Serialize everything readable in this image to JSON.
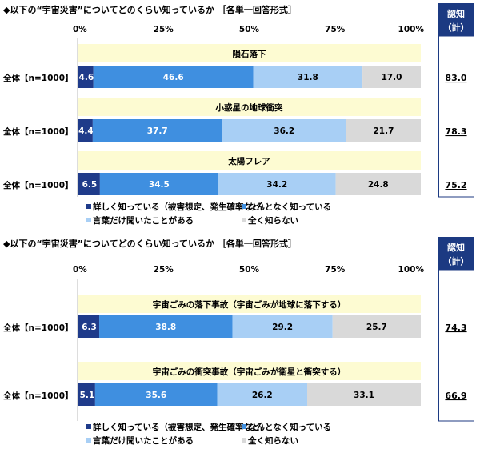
{
  "chart_data": [
    {
      "type": "bar",
      "stacked": true,
      "orientation": "horizontal",
      "title": "◆以下の“宇宙災害”についてどのくらい知っているか ［各単一回答形式］",
      "xlim": [
        0,
        100
      ],
      "x_ticks": [
        "0%",
        "25%",
        "50%",
        "75%",
        "100%"
      ],
      "total_header": "認知（計）",
      "groups": [
        {
          "item": "隕石落下",
          "category": "全体【n=1000】",
          "values": [
            4.6,
            46.6,
            31.8,
            17.0
          ],
          "total": "83.0"
        },
        {
          "item": "小惑星の地球衝突",
          "category": "全体【n=1000】",
          "values": [
            4.4,
            37.7,
            36.2,
            21.7
          ],
          "total": "78.3"
        },
        {
          "item": "太陽フレア",
          "category": "全体【n=1000】",
          "values": [
            6.5,
            34.5,
            34.2,
            24.8
          ],
          "total": "75.2"
        }
      ],
      "series": [
        {
          "name": "詳しく知っている（被害想定、発生確率など）",
          "color": "#1f3b8a"
        },
        {
          "name": "なんとなく知っている",
          "color": "#3f8fe0"
        },
        {
          "name": "言葉だけ聞いたことがある",
          "color": "#a8cff5"
        },
        {
          "name": "全く知らない",
          "color": "#d9d9d9"
        }
      ],
      "legend": "bottom"
    },
    {
      "type": "bar",
      "stacked": true,
      "orientation": "horizontal",
      "title": "◆以下の“宇宙災害”についてどのくらい知っているか ［各単一回答形式］",
      "xlim": [
        0,
        100
      ],
      "x_ticks": [
        "0%",
        "25%",
        "50%",
        "75%",
        "100%"
      ],
      "total_header": "認知（計）",
      "groups": [
        {
          "item": "宇宙ごみの落下事故（宇宙ごみが地球に落下する）",
          "category": "全体【n=1000】",
          "values": [
            6.3,
            38.8,
            29.2,
            25.7
          ],
          "total": "74.3"
        },
        {
          "item": "宇宙ごみの衝突事故（宇宙ごみが衛星と衝突する）",
          "category": "全体【n=1000】",
          "values": [
            5.1,
            35.6,
            26.2,
            33.1
          ],
          "total": "66.9"
        }
      ],
      "series": [
        {
          "name": "詳しく知っている（被害想定、発生確率など）",
          "color": "#1f3b8a"
        },
        {
          "name": "なんとなく知っている",
          "color": "#3f8fe0"
        },
        {
          "name": "言葉だけ聞いたことがある",
          "color": "#a8cff5"
        },
        {
          "name": "全く知らない",
          "color": "#d9d9d9"
        }
      ],
      "legend": "bottom"
    }
  ],
  "colors": {
    "banner": "#fdfbd2",
    "header_box": "#1c3a82"
  }
}
